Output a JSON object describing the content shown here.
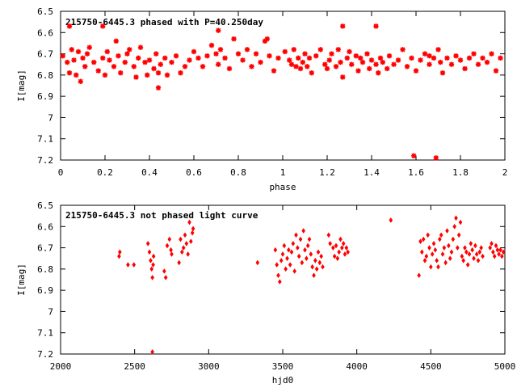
{
  "colors": {
    "points": "#ff0000",
    "axes": "#000000",
    "background": "#ffffff"
  },
  "chart_data": [
    {
      "type": "scatter",
      "title": "215750-6445.3 phased with P=40.250day",
      "xlabel": "phase",
      "ylabel": "I[mag]",
      "xlim": [
        0,
        2
      ],
      "ylim": [
        7.2,
        6.5
      ],
      "y_inverted": true,
      "x_ticks": [
        "0",
        "0.2",
        "0.4",
        "0.6",
        "0.8",
        "1",
        "1.2",
        "1.4",
        "1.6",
        "1.8",
        "2"
      ],
      "y_ticks": [
        "6.5",
        "6.6",
        "6.7",
        "6.8",
        "6.9",
        "7",
        "7.1",
        "7.2"
      ],
      "marker": "star",
      "grid": false,
      "x": [
        0.01,
        0.03,
        0.04,
        0.05,
        0.06,
        0.07,
        0.08,
        0.09,
        0.1,
        0.11,
        0.12,
        0.13,
        0.15,
        0.17,
        0.19,
        0.2,
        0.21,
        0.22,
        0.24,
        0.25,
        0.26,
        0.27,
        0.29,
        0.3,
        0.31,
        0.33,
        0.34,
        0.35,
        0.36,
        0.38,
        0.39,
        0.4,
        0.42,
        0.43,
        0.44,
        0.45,
        0.47,
        0.48,
        0.5,
        0.52,
        0.54,
        0.56,
        0.58,
        0.6,
        0.62,
        0.64,
        0.66,
        0.68,
        0.7,
        0.71,
        0.72,
        0.74,
        0.76,
        0.78,
        0.8,
        0.82,
        0.84,
        0.86,
        0.88,
        0.9,
        0.92,
        0.94,
        0.96,
        0.98,
        1.01,
        1.03,
        1.04,
        1.05,
        1.06,
        1.07,
        1.08,
        1.09,
        1.1,
        1.11,
        1.12,
        1.13,
        1.15,
        1.17,
        1.19,
        1.2,
        1.21,
        1.22,
        1.24,
        1.25,
        1.26,
        1.27,
        1.29,
        1.3,
        1.31,
        1.33,
        1.34,
        1.35,
        1.36,
        1.38,
        1.39,
        1.4,
        1.42,
        1.43,
        1.44,
        1.45,
        1.47,
        1.48,
        1.5,
        1.52,
        1.54,
        1.56,
        1.58,
        1.6,
        1.62,
        1.64,
        1.66,
        1.68,
        1.7,
        1.71,
        1.72,
        1.74,
        1.76,
        1.78,
        1.8,
        1.82,
        1.84,
        1.86,
        1.88,
        1.9,
        1.92,
        1.94,
        1.96,
        1.98,
        0.44,
        1.59,
        1.69,
        0.04,
        0.19,
        0.71,
        0.93,
        1.27,
        1.42,
        1.66
      ],
      "y": [
        6.71,
        6.74,
        6.79,
        6.68,
        6.73,
        6.8,
        6.69,
        6.83,
        6.72,
        6.76,
        6.7,
        6.67,
        6.74,
        6.78,
        6.72,
        6.8,
        6.69,
        6.73,
        6.76,
        6.64,
        6.71,
        6.79,
        6.74,
        6.7,
        6.68,
        6.76,
        6.81,
        6.72,
        6.67,
        6.74,
        6.8,
        6.73,
        6.77,
        6.7,
        6.79,
        6.75,
        6.72,
        6.8,
        6.74,
        6.71,
        6.79,
        6.76,
        6.73,
        6.69,
        6.72,
        6.76,
        6.71,
        6.66,
        6.7,
        6.75,
        6.68,
        6.72,
        6.77,
        6.63,
        6.7,
        6.73,
        6.68,
        6.76,
        6.7,
        6.74,
        6.64,
        6.71,
        6.78,
        6.72,
        6.69,
        6.73,
        6.75,
        6.68,
        6.76,
        6.72,
        6.77,
        6.74,
        6.7,
        6.76,
        6.72,
        6.79,
        6.71,
        6.68,
        6.75,
        6.77,
        6.73,
        6.7,
        6.76,
        6.68,
        6.74,
        6.81,
        6.72,
        6.69,
        6.75,
        6.71,
        6.78,
        6.72,
        6.74,
        6.7,
        6.77,
        6.73,
        6.75,
        6.79,
        6.72,
        6.74,
        6.77,
        6.71,
        6.75,
        6.73,
        6.68,
        6.76,
        6.72,
        6.78,
        6.73,
        6.7,
        6.75,
        6.72,
        6.68,
        6.74,
        6.79,
        6.72,
        6.75,
        6.71,
        6.73,
        6.77,
        6.72,
        6.7,
        6.75,
        6.72,
        6.74,
        6.7,
        6.78,
        6.72,
        6.86,
        7.18,
        7.19,
        6.57,
        6.57,
        6.59,
        6.63,
        6.57,
        6.57,
        6.71
      ]
    },
    {
      "type": "scatter",
      "title": "215750-6445.3 not phased light curve",
      "xlabel": "hjd0",
      "ylabel": "I[mag]",
      "xlim": [
        2000,
        5000
      ],
      "ylim": [
        7.2,
        6.5
      ],
      "y_inverted": true,
      "x_ticks": [
        "2000",
        "2500",
        "3000",
        "3500",
        "4000",
        "4500",
        "5000"
      ],
      "y_ticks": [
        "6.5",
        "6.6",
        "6.7",
        "6.8",
        "6.9",
        "7",
        "7.1",
        "7.2"
      ],
      "marker": "diamond",
      "grid": false,
      "x": [
        2395,
        2400,
        2455,
        2495,
        2590,
        2600,
        2608,
        2615,
        2620,
        2625,
        2628,
        2700,
        2710,
        2720,
        2735,
        2745,
        2750,
        2800,
        2810,
        2820,
        2830,
        2840,
        2850,
        2860,
        2870,
        2880,
        2890,
        2895,
        3330,
        3450,
        3460,
        3470,
        3480,
        3490,
        3500,
        3510,
        3520,
        3530,
        3540,
        3550,
        3560,
        3570,
        3580,
        3590,
        3600,
        3610,
        3620,
        3630,
        3640,
        3650,
        3660,
        3670,
        3680,
        3690,
        3700,
        3710,
        3720,
        3730,
        3740,
        3750,
        3760,
        3770,
        3810,
        3820,
        3840,
        3850,
        3860,
        3870,
        3880,
        3890,
        3900,
        3910,
        3920,
        3930,
        3940,
        4230,
        4420,
        4430,
        4440,
        4450,
        4460,
        4470,
        4480,
        4490,
        4500,
        4510,
        4520,
        4530,
        4540,
        4550,
        4560,
        4570,
        4580,
        4590,
        4600,
        4610,
        4620,
        4630,
        4640,
        4650,
        4660,
        4670,
        4680,
        4690,
        4700,
        4710,
        4720,
        4730,
        4740,
        4750,
        4760,
        4770,
        4780,
        4790,
        4800,
        4810,
        4820,
        4830,
        4840,
        4850,
        4900,
        4910,
        4920,
        4930,
        4940,
        4950,
        4960,
        4970,
        4980,
        4990,
        2620
      ],
      "y": [
        6.74,
        6.72,
        6.78,
        6.78,
        6.68,
        6.72,
        6.76,
        6.8,
        6.84,
        6.78,
        6.74,
        6.81,
        6.84,
        6.69,
        6.66,
        6.71,
        6.73,
        6.77,
        6.66,
        6.72,
        6.7,
        6.64,
        6.68,
        6.73,
        6.58,
        6.67,
        6.63,
        6.61,
        6.77,
        6.71,
        6.78,
        6.83,
        6.86,
        6.76,
        6.73,
        6.69,
        6.8,
        6.75,
        6.71,
        6.78,
        6.72,
        6.68,
        6.81,
        6.64,
        6.7,
        6.74,
        6.66,
        6.77,
        6.62,
        6.71,
        6.75,
        6.69,
        6.66,
        6.73,
        6.79,
        6.83,
        6.76,
        6.8,
        6.72,
        6.77,
        6.74,
        6.79,
        6.64,
        6.68,
        6.7,
        6.74,
        6.69,
        6.75,
        6.72,
        6.66,
        6.7,
        6.68,
        6.73,
        6.7,
        6.72,
        6.57,
        6.83,
        6.67,
        6.72,
        6.66,
        6.76,
        6.74,
        6.64,
        6.7,
        6.79,
        6.73,
        6.68,
        6.71,
        6.76,
        6.79,
        6.66,
        6.64,
        6.73,
        6.7,
        6.77,
        6.62,
        6.69,
        6.75,
        6.72,
        6.66,
        6.6,
        6.56,
        6.7,
        6.64,
        6.58,
        6.74,
        6.76,
        6.7,
        6.72,
        6.78,
        6.73,
        6.68,
        6.71,
        6.75,
        6.69,
        6.73,
        6.76,
        6.72,
        6.7,
        6.74,
        6.7,
        6.68,
        6.72,
        6.74,
        6.69,
        6.71,
        6.73,
        6.71,
        6.74,
        6.72,
        7.19
      ]
    }
  ]
}
